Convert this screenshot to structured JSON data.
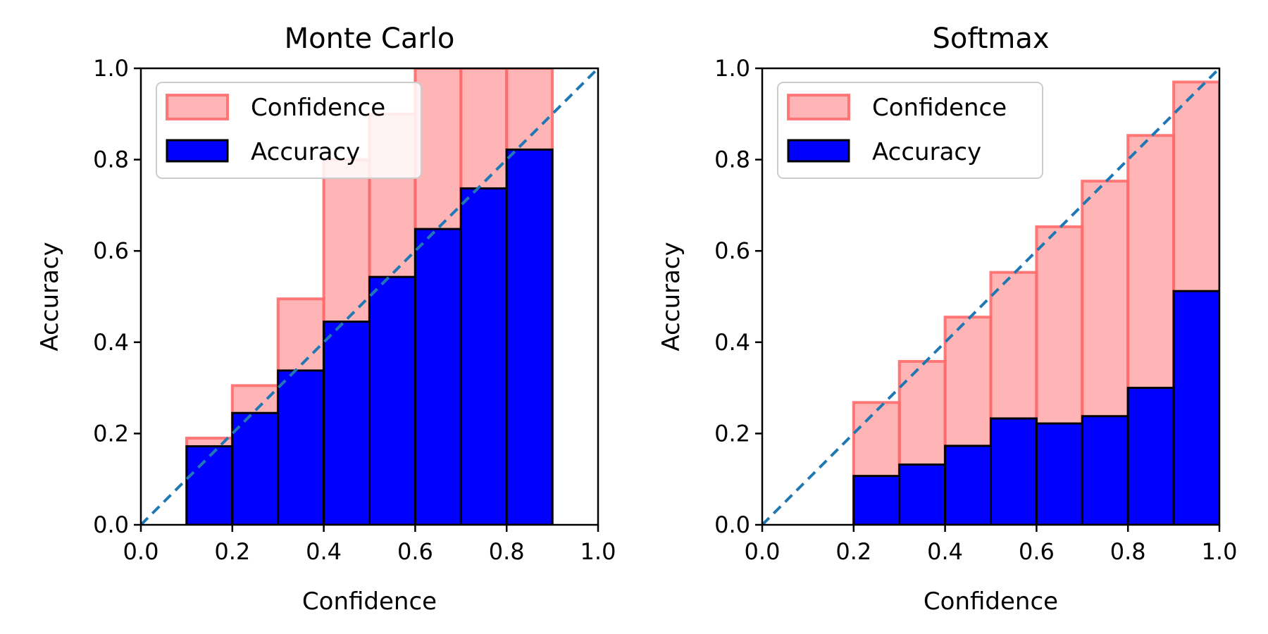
{
  "chart_data": [
    {
      "type": "bar",
      "title": "Monte Carlo",
      "xlabel": "Confidence",
      "ylabel": "Accuracy",
      "xlim": [
        0.0,
        1.0
      ],
      "ylim": [
        0.0,
        1.0
      ],
      "xticks": [
        "0.0",
        "0.2",
        "0.4",
        "0.6",
        "0.8",
        "1.0"
      ],
      "yticks": [
        "0.0",
        "0.2",
        "0.4",
        "0.6",
        "0.8",
        "1.0"
      ],
      "bin_edges": [
        0.0,
        0.1,
        0.2,
        0.3,
        0.4,
        0.5,
        0.6,
        0.7,
        0.8,
        0.9,
        1.0
      ],
      "series": [
        {
          "name": "Confidence",
          "color": "#ff6b6b",
          "values": [
            0.0,
            0.19,
            0.305,
            0.495,
            0.8,
            0.9,
            1.0,
            1.0,
            1.0,
            0.0
          ]
        },
        {
          "name": "Accuracy",
          "color": "#0000ff",
          "values": [
            0.0,
            0.172,
            0.245,
            0.338,
            0.445,
            0.543,
            0.648,
            0.737,
            0.822,
            0.0
          ]
        }
      ],
      "reference_line": {
        "style": "dashed",
        "color": "#1f77b4",
        "from": [
          0,
          0
        ],
        "to": [
          1,
          1
        ]
      },
      "legend": {
        "position": "upper-left"
      }
    },
    {
      "type": "bar",
      "title": "Softmax",
      "xlabel": "Confidence",
      "ylabel": "Accuracy",
      "xlim": [
        0.0,
        1.0
      ],
      "ylim": [
        0.0,
        1.0
      ],
      "xticks": [
        "0.0",
        "0.2",
        "0.4",
        "0.6",
        "0.8",
        "1.0"
      ],
      "yticks": [
        "0.0",
        "0.2",
        "0.4",
        "0.6",
        "0.8",
        "1.0"
      ],
      "bin_edges": [
        0.0,
        0.1,
        0.2,
        0.3,
        0.4,
        0.5,
        0.6,
        0.7,
        0.8,
        0.9,
        1.0
      ],
      "series": [
        {
          "name": "Confidence",
          "color": "#ff6b6b",
          "values": [
            0.0,
            0.0,
            0.268,
            0.358,
            0.455,
            0.553,
            0.653,
            0.753,
            0.853,
            0.97
          ]
        },
        {
          "name": "Accuracy",
          "color": "#0000ff",
          "values": [
            0.0,
            0.0,
            0.107,
            0.132,
            0.173,
            0.233,
            0.222,
            0.238,
            0.3,
            0.512
          ]
        }
      ],
      "reference_line": {
        "style": "dashed",
        "color": "#1f77b4",
        "from": [
          0,
          0
        ],
        "to": [
          1,
          1
        ]
      },
      "legend": {
        "position": "upper-left"
      }
    }
  ]
}
